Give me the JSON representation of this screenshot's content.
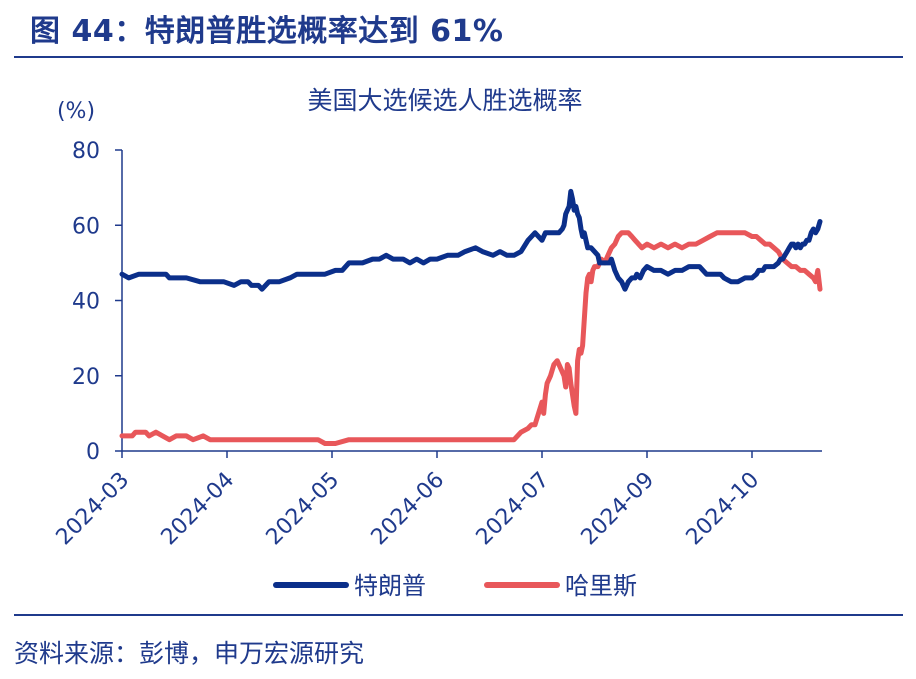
{
  "figure": {
    "title": "图 44：特朗普胜选概率达到 61%",
    "source": "资料来源：彭博，申万宏源研究"
  },
  "chart_data": {
    "type": "line",
    "title": "美国大选候选人胜选概率",
    "ylabel": "(%)",
    "ylim": [
      0,
      80
    ],
    "yticks": [
      0,
      20,
      40,
      60,
      80
    ],
    "xlim": [
      "2024-03-01",
      "2024-10-21"
    ],
    "xticks": [
      {
        "date": "2024-03-01",
        "label": "2024-03"
      },
      {
        "date": "2024-04-01",
        "label": "2024-04"
      },
      {
        "date": "2024-05-01",
        "label": "2024-05"
      },
      {
        "date": "2024-06-01",
        "label": "2024-06"
      },
      {
        "date": "2024-07-01",
        "label": "2024-07"
      },
      {
        "date": "2024-09-01",
        "label": "2024-09"
      },
      {
        "date": "2024-10-01",
        "label": "2024-10"
      }
    ],
    "grid": false,
    "legend_position": "bottom",
    "series": [
      {
        "name": "特朗普",
        "color": "#0b2f8a",
        "points": [
          [
            "2024-03-01",
            47
          ],
          [
            "2024-03-03",
            46
          ],
          [
            "2024-03-06",
            47
          ],
          [
            "2024-03-10",
            47
          ],
          [
            "2024-03-14",
            47
          ],
          [
            "2024-03-15",
            46
          ],
          [
            "2024-03-20",
            46
          ],
          [
            "2024-03-24",
            45
          ],
          [
            "2024-03-28",
            45
          ],
          [
            "2024-03-31",
            45
          ],
          [
            "2024-04-03",
            44
          ],
          [
            "2024-04-05",
            45
          ],
          [
            "2024-04-07",
            45
          ],
          [
            "2024-04-08",
            44
          ],
          [
            "2024-04-10",
            44
          ],
          [
            "2024-04-11",
            43
          ],
          [
            "2024-04-13",
            45
          ],
          [
            "2024-04-16",
            45
          ],
          [
            "2024-04-19",
            46
          ],
          [
            "2024-04-21",
            47
          ],
          [
            "2024-04-25",
            47
          ],
          [
            "2024-04-29",
            47
          ],
          [
            "2024-05-02",
            48
          ],
          [
            "2024-05-04",
            48
          ],
          [
            "2024-05-06",
            50
          ],
          [
            "2024-05-10",
            50
          ],
          [
            "2024-05-13",
            51
          ],
          [
            "2024-05-15",
            51
          ],
          [
            "2024-05-17",
            52
          ],
          [
            "2024-05-19",
            51
          ],
          [
            "2024-05-22",
            51
          ],
          [
            "2024-05-24",
            50
          ],
          [
            "2024-05-26",
            51
          ],
          [
            "2024-05-28",
            50
          ],
          [
            "2024-05-30",
            51
          ],
          [
            "2024-06-01",
            51
          ],
          [
            "2024-06-04",
            52
          ],
          [
            "2024-06-07",
            52
          ],
          [
            "2024-06-09",
            53
          ],
          [
            "2024-06-12",
            54
          ],
          [
            "2024-06-14",
            53
          ],
          [
            "2024-06-17",
            52
          ],
          [
            "2024-06-19",
            53
          ],
          [
            "2024-06-21",
            52
          ],
          [
            "2024-06-23",
            52
          ],
          [
            "2024-06-25",
            53
          ],
          [
            "2024-06-27",
            56
          ],
          [
            "2024-06-29",
            58
          ],
          [
            "2024-07-01",
            56
          ],
          [
            "2024-07-03",
            58
          ],
          [
            "2024-07-05",
            58
          ],
          [
            "2024-07-08",
            58
          ],
          [
            "2024-07-10",
            58
          ],
          [
            "2024-07-11",
            58
          ],
          [
            "2024-07-13",
            59
          ],
          [
            "2024-07-14",
            60
          ],
          [
            "2024-07-15",
            63
          ],
          [
            "2024-07-16",
            64
          ],
          [
            "2024-07-17",
            65
          ],
          [
            "2024-07-18",
            69
          ],
          [
            "2024-07-19",
            67
          ],
          [
            "2024-07-20",
            64
          ],
          [
            "2024-07-21",
            65
          ],
          [
            "2024-07-22",
            63
          ],
          [
            "2024-07-23",
            62
          ],
          [
            "2024-07-24",
            59
          ],
          [
            "2024-07-25",
            57
          ],
          [
            "2024-07-26",
            58
          ],
          [
            "2024-07-27",
            56
          ],
          [
            "2024-07-28",
            54
          ],
          [
            "2024-07-30",
            54
          ],
          [
            "2024-08-01",
            53
          ],
          [
            "2024-08-03",
            52
          ],
          [
            "2024-08-04",
            50
          ],
          [
            "2024-08-06",
            50
          ],
          [
            "2024-08-08",
            50
          ],
          [
            "2024-08-10",
            50
          ],
          [
            "2024-08-11",
            51
          ],
          [
            "2024-08-13",
            48
          ],
          [
            "2024-08-15",
            46
          ],
          [
            "2024-08-17",
            45
          ],
          [
            "2024-08-18",
            44
          ],
          [
            "2024-08-19",
            43
          ],
          [
            "2024-08-21",
            45
          ],
          [
            "2024-08-23",
            46
          ],
          [
            "2024-08-25",
            46
          ],
          [
            "2024-08-26",
            47
          ],
          [
            "2024-08-28",
            46
          ],
          [
            "2024-08-30",
            48
          ],
          [
            "2024-09-01",
            49
          ],
          [
            "2024-09-03",
            48
          ],
          [
            "2024-09-05",
            48
          ],
          [
            "2024-09-07",
            47
          ],
          [
            "2024-09-09",
            48
          ],
          [
            "2024-09-11",
            48
          ],
          [
            "2024-09-13",
            49
          ],
          [
            "2024-09-15",
            49
          ],
          [
            "2024-09-16",
            49
          ],
          [
            "2024-09-18",
            47
          ],
          [
            "2024-09-20",
            47
          ],
          [
            "2024-09-22",
            47
          ],
          [
            "2024-09-23",
            46
          ],
          [
            "2024-09-25",
            45
          ],
          [
            "2024-09-27",
            45
          ],
          [
            "2024-09-29",
            46
          ],
          [
            "2024-10-01",
            46
          ],
          [
            "2024-10-03",
            47
          ],
          [
            "2024-10-04",
            48
          ],
          [
            "2024-10-06",
            48
          ],
          [
            "2024-10-07",
            49
          ],
          [
            "2024-10-09",
            49
          ],
          [
            "2024-10-11",
            49
          ],
          [
            "2024-10-13",
            50
          ],
          [
            "2024-10-14",
            51
          ],
          [
            "2024-10-15",
            51
          ],
          [
            "2024-10-16",
            52
          ],
          [
            "2024-10-17",
            53
          ],
          [
            "2024-10-18",
            54
          ],
          [
            "2024-10-19",
            55
          ],
          [
            "2024-10-20",
            55
          ],
          [
            "2024-10-21",
            54
          ],
          [
            "2024-10-22",
            55
          ],
          [
            "2024-10-23",
            54
          ],
          [
            "2024-10-24",
            55
          ],
          [
            "2024-10-25",
            55
          ],
          [
            "2024-10-26",
            56
          ],
          [
            "2024-10-27",
            56
          ],
          [
            "2024-10-28",
            58
          ],
          [
            "2024-10-29",
            59
          ],
          [
            "2024-10-30",
            58
          ],
          [
            "2024-10-31",
            59
          ],
          [
            "2024-11-01",
            61
          ]
        ]
      },
      {
        "name": "哈里斯",
        "color": "#e8575a",
        "points": [
          [
            "2024-03-01",
            4
          ],
          [
            "2024-03-04",
            4
          ],
          [
            "2024-03-05",
            5
          ],
          [
            "2024-03-08",
            5
          ],
          [
            "2024-03-09",
            4
          ],
          [
            "2024-03-11",
            5
          ],
          [
            "2024-03-13",
            4
          ],
          [
            "2024-03-15",
            3
          ],
          [
            "2024-03-17",
            4
          ],
          [
            "2024-03-20",
            4
          ],
          [
            "2024-03-22",
            3
          ],
          [
            "2024-03-25",
            4
          ],
          [
            "2024-03-27",
            3
          ],
          [
            "2024-03-30",
            3
          ],
          [
            "2024-04-03",
            3
          ],
          [
            "2024-04-08",
            3
          ],
          [
            "2024-04-12",
            3
          ],
          [
            "2024-04-16",
            3
          ],
          [
            "2024-04-20",
            3
          ],
          [
            "2024-04-24",
            3
          ],
          [
            "2024-04-27",
            3
          ],
          [
            "2024-04-29",
            2
          ],
          [
            "2024-05-02",
            2
          ],
          [
            "2024-05-06",
            3
          ],
          [
            "2024-05-08",
            3
          ],
          [
            "2024-05-10",
            3
          ],
          [
            "2024-05-13",
            3
          ],
          [
            "2024-05-15",
            3
          ],
          [
            "2024-05-18",
            3
          ],
          [
            "2024-05-22",
            3
          ],
          [
            "2024-05-26",
            3
          ],
          [
            "2024-05-30",
            3
          ],
          [
            "2024-06-03",
            3
          ],
          [
            "2024-06-06",
            3
          ],
          [
            "2024-06-09",
            3
          ],
          [
            "2024-06-12",
            3
          ],
          [
            "2024-06-15",
            3
          ],
          [
            "2024-06-18",
            3
          ],
          [
            "2024-06-21",
            3
          ],
          [
            "2024-06-23",
            3
          ],
          [
            "2024-06-25",
            5
          ],
          [
            "2024-06-27",
            6
          ],
          [
            "2024-06-28",
            7
          ],
          [
            "2024-06-29",
            7
          ],
          [
            "2024-07-01",
            13
          ],
          [
            "2024-07-02",
            10
          ],
          [
            "2024-07-03",
            15
          ],
          [
            "2024-07-04",
            18
          ],
          [
            "2024-07-06",
            20
          ],
          [
            "2024-07-08",
            23
          ],
          [
            "2024-07-10",
            24
          ],
          [
            "2024-07-12",
            22
          ],
          [
            "2024-07-14",
            20
          ],
          [
            "2024-07-15",
            17
          ],
          [
            "2024-07-16",
            23
          ],
          [
            "2024-07-17",
            22
          ],
          [
            "2024-07-18",
            18
          ],
          [
            "2024-07-19",
            15
          ],
          [
            "2024-07-20",
            12
          ],
          [
            "2024-07-21",
            10
          ],
          [
            "2024-07-22",
            24
          ],
          [
            "2024-07-23",
            27
          ],
          [
            "2024-07-24",
            26
          ],
          [
            "2024-07-25",
            28
          ],
          [
            "2024-07-26",
            35
          ],
          [
            "2024-07-27",
            42
          ],
          [
            "2024-07-28",
            46
          ],
          [
            "2024-07-29",
            47
          ],
          [
            "2024-07-30",
            45
          ],
          [
            "2024-07-31",
            48
          ],
          [
            "2024-08-01",
            49
          ],
          [
            "2024-08-03",
            49
          ],
          [
            "2024-08-05",
            51
          ],
          [
            "2024-08-07",
            50
          ],
          [
            "2024-08-09",
            52
          ],
          [
            "2024-08-11",
            54
          ],
          [
            "2024-08-13",
            55
          ],
          [
            "2024-08-15",
            57
          ],
          [
            "2024-08-17",
            58
          ],
          [
            "2024-08-19",
            58
          ],
          [
            "2024-08-21",
            58
          ],
          [
            "2024-08-23",
            57
          ],
          [
            "2024-08-25",
            56
          ],
          [
            "2024-08-27",
            55
          ],
          [
            "2024-08-29",
            54
          ],
          [
            "2024-09-01",
            55
          ],
          [
            "2024-09-03",
            54
          ],
          [
            "2024-09-05",
            55
          ],
          [
            "2024-09-07",
            54
          ],
          [
            "2024-09-09",
            55
          ],
          [
            "2024-09-11",
            54
          ],
          [
            "2024-09-13",
            55
          ],
          [
            "2024-09-15",
            55
          ],
          [
            "2024-09-17",
            56
          ],
          [
            "2024-09-19",
            57
          ],
          [
            "2024-09-21",
            58
          ],
          [
            "2024-09-23",
            58
          ],
          [
            "2024-09-25",
            58
          ],
          [
            "2024-09-27",
            58
          ],
          [
            "2024-09-29",
            58
          ],
          [
            "2024-10-01",
            57
          ],
          [
            "2024-10-03",
            57
          ],
          [
            "2024-10-05",
            56
          ],
          [
            "2024-10-07",
            55
          ],
          [
            "2024-10-09",
            55
          ],
          [
            "2024-10-11",
            54
          ],
          [
            "2024-10-13",
            53
          ],
          [
            "2024-10-15",
            51
          ],
          [
            "2024-10-17",
            50
          ],
          [
            "2024-10-19",
            49
          ],
          [
            "2024-10-21",
            49
          ],
          [
            "2024-10-23",
            48
          ],
          [
            "2024-10-25",
            48
          ],
          [
            "2024-10-27",
            47
          ],
          [
            "2024-10-29",
            46
          ],
          [
            "2024-10-30",
            45
          ],
          [
            "2024-10-31",
            48
          ],
          [
            "2024-11-01",
            43
          ]
        ]
      }
    ]
  }
}
